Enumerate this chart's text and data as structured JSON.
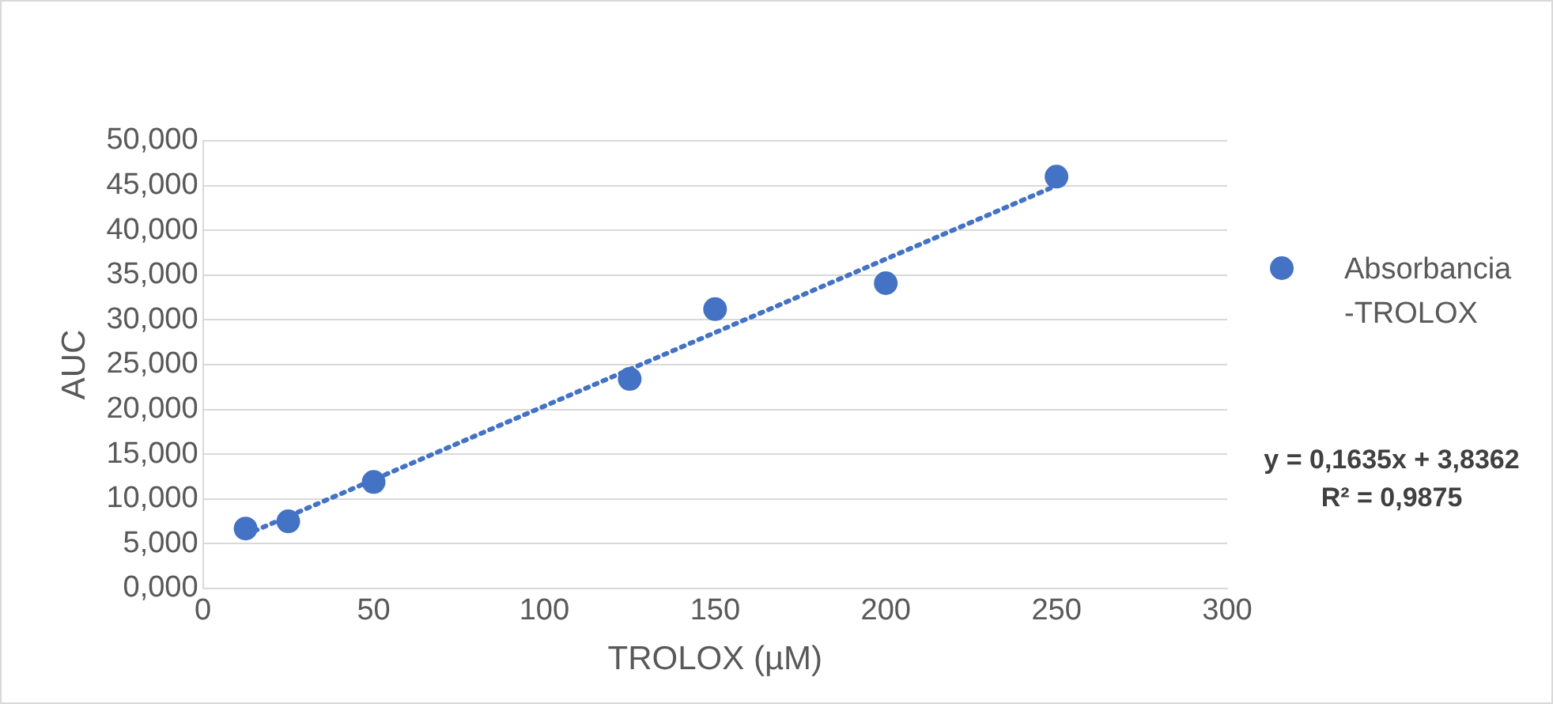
{
  "chart_data": {
    "type": "scatter",
    "xlabel": "TROLOX (µM)",
    "ylabel": "AUC",
    "series": [
      {
        "name": "Absorbancia -TROLOX",
        "type": "scatter",
        "color": "#4472c4",
        "marker": "circle",
        "x": [
          12.5,
          25,
          50,
          125,
          150,
          200,
          250
        ],
        "values": [
          6.7,
          7.5,
          11.9,
          23.4,
          31.2,
          34.1,
          46.0
        ]
      },
      {
        "type": "line",
        "color": "#4472c4",
        "line_style": "dotted",
        "marker": "none",
        "x": [
          12.5,
          250
        ],
        "values": [
          6.0,
          45.0
        ]
      }
    ],
    "xlim": [
      0,
      300
    ],
    "xticks": [
      0,
      50,
      100,
      150,
      200,
      250,
      300
    ],
    "ylim": [
      0,
      50
    ],
    "yticks": [
      {
        "value": 0,
        "label": "0,000"
      },
      {
        "value": 5,
        "label": "5,000"
      },
      {
        "value": 10,
        "label": "10,000"
      },
      {
        "value": 15,
        "label": "15,000"
      },
      {
        "value": 20,
        "label": "20,000"
      },
      {
        "value": 25,
        "label": "25,000"
      },
      {
        "value": 30,
        "label": "30,000"
      },
      {
        "value": 35,
        "label": "35,000"
      },
      {
        "value": 40,
        "label": "40,000"
      },
      {
        "value": 45,
        "label": "45,000"
      },
      {
        "value": 50,
        "label": "50,000"
      }
    ],
    "grid": "y",
    "legend": "right",
    "annotations": [
      "y = 0,1635x + 3,8362",
      "R² = 0,9875"
    ]
  }
}
